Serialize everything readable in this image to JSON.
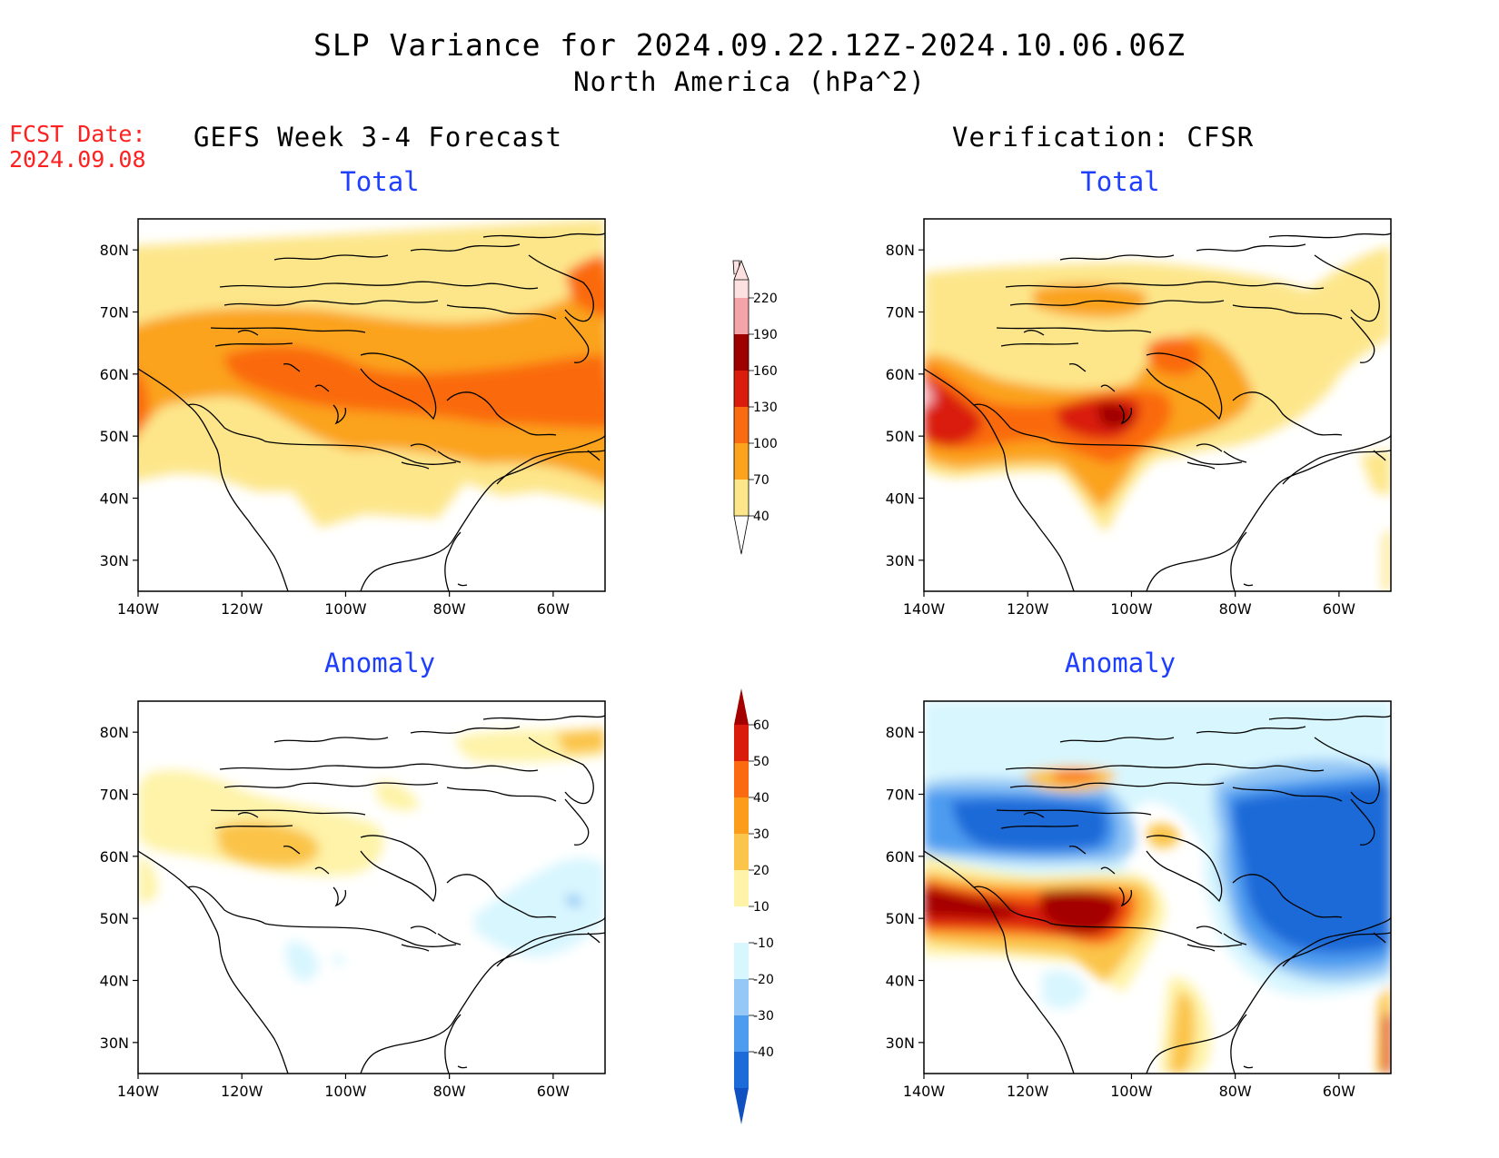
{
  "header": {
    "title": "SLP Variance for 2024.09.22.12Z-2024.10.06.06Z",
    "subtitle": "North America (hPa^2)",
    "fcst_label": "FCST Date:",
    "fcst_date": "2024.09.08",
    "left_heading": "GEFS Week 3-4 Forecast",
    "right_heading": "Verification: CFSR"
  },
  "panels": [
    {
      "id": "fcst-total",
      "title": "Total"
    },
    {
      "id": "verif-total",
      "title": "Total"
    },
    {
      "id": "fcst-anomaly",
      "title": "Anomaly"
    },
    {
      "id": "verif-anomaly",
      "title": "Anomaly"
    }
  ],
  "axes": {
    "lon_ticks": [
      "140W",
      "120W",
      "100W",
      "80W",
      "60W"
    ],
    "lon_values": [
      -140,
      -120,
      -100,
      -80,
      -60
    ],
    "lat_ticks": [
      "80N",
      "70N",
      "60N",
      "50N",
      "40N",
      "30N"
    ],
    "lat_values": [
      80,
      70,
      60,
      50,
      40,
      30
    ],
    "lon_range": [
      -140,
      -50
    ],
    "lat_range": [
      25,
      85
    ]
  },
  "colorbars": {
    "total": {
      "labels": [
        "40",
        "70",
        "100",
        "130",
        "160",
        "190",
        "220"
      ],
      "colors": [
        "#fde68a",
        "#fba31b",
        "#fa6a10",
        "#d91c0c",
        "#9e0000",
        "#f4a3a8",
        "#fde0e0"
      ]
    },
    "anomaly": {
      "labels": [
        "60",
        "50",
        "40",
        "30",
        "20",
        "10",
        "-10",
        "-20",
        "-30",
        "-40"
      ],
      "colors_top_to_bottom": [
        "#a50000",
        "#d91c0c",
        "#fa6a10",
        "#fb9c1b",
        "#fbc44a",
        "#fef3a8",
        "#ffffff",
        "#d8f6fe",
        "#95c8f5",
        "#4d9cf0",
        "#1d6bd8",
        "#1150c0"
      ]
    }
  }
}
